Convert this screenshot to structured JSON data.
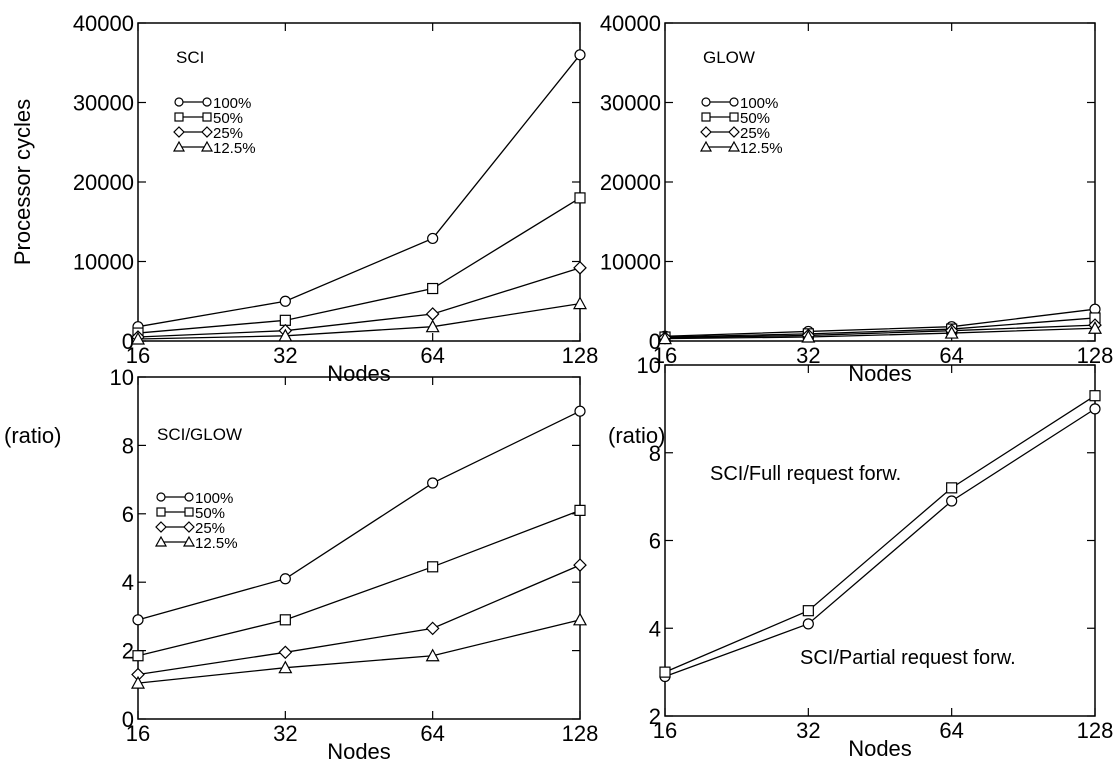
{
  "chart_data": [
    {
      "id": "sci",
      "type": "line",
      "title": "SCI",
      "xlabel": "Nodes",
      "ylabel": "Processor cycles",
      "ylim": [
        0,
        40000
      ],
      "x": [
        16,
        32,
        64,
        128
      ],
      "x_scale": "log2",
      "yticks": [
        "0",
        "10000",
        "20000",
        "30000",
        "40000"
      ],
      "ytick_values": [
        0,
        10000,
        20000,
        30000,
        40000
      ],
      "xticks": [
        "16",
        "32",
        "64",
        "128"
      ],
      "legend_position": "top-left",
      "series": [
        {
          "name": "100%",
          "marker": "circle",
          "values": [
            1800,
            5000,
            12900,
            36000
          ]
        },
        {
          "name": "50%",
          "marker": "square",
          "values": [
            1000,
            2600,
            6600,
            18000
          ]
        },
        {
          "name": "25%",
          "marker": "diamond",
          "values": [
            500,
            1300,
            3400,
            9200
          ]
        },
        {
          "name": "12.5%",
          "marker": "triangle",
          "values": [
            250,
            650,
            1800,
            4700
          ]
        }
      ]
    },
    {
      "id": "glow",
      "type": "line",
      "title": "GLOW",
      "xlabel": "Nodes",
      "ylabel": "",
      "ylim": [
        0,
        40000
      ],
      "x": [
        16,
        32,
        64,
        128
      ],
      "x_scale": "log2",
      "yticks": [
        "0",
        "10000",
        "20000",
        "30000",
        "40000"
      ],
      "ytick_values": [
        0,
        10000,
        20000,
        30000,
        40000
      ],
      "xticks": [
        "16",
        "32",
        "64",
        "128"
      ],
      "legend_position": "top-left",
      "series": [
        {
          "name": "100%",
          "marker": "circle",
          "values": [
            600,
            1200,
            1800,
            4000
          ]
        },
        {
          "name": "50%",
          "marker": "square",
          "values": [
            500,
            900,
            1500,
            2900
          ]
        },
        {
          "name": "25%",
          "marker": "diamond",
          "values": [
            400,
            700,
            1300,
            2000
          ]
        },
        {
          "name": "12.5%",
          "marker": "triangle",
          "values": [
            300,
            500,
            1000,
            1600
          ]
        }
      ]
    },
    {
      "id": "ratio",
      "type": "line",
      "title": "SCI/GLOW",
      "xlabel": "Nodes",
      "ylabel": "(ratio)",
      "ylim": [
        0,
        10
      ],
      "x": [
        16,
        32,
        64,
        128
      ],
      "x_scale": "log2",
      "yticks": [
        "0",
        "2",
        "4",
        "6",
        "8",
        "10"
      ],
      "ytick_values": [
        0,
        2,
        4,
        6,
        8,
        10
      ],
      "xticks": [
        "16",
        "32",
        "64",
        "128"
      ],
      "legend_position": "top-left",
      "series": [
        {
          "name": "100%",
          "marker": "circle",
          "values": [
            2.9,
            4.1,
            6.9,
            9.0
          ]
        },
        {
          "name": "50%",
          "marker": "square",
          "values": [
            1.85,
            2.9,
            4.45,
            6.1
          ]
        },
        {
          "name": "25%",
          "marker": "diamond",
          "values": [
            1.3,
            1.95,
            2.65,
            4.5
          ]
        },
        {
          "name": "12.5%",
          "marker": "triangle",
          "values": [
            1.05,
            1.5,
            1.85,
            2.9
          ]
        }
      ]
    },
    {
      "id": "forward",
      "type": "line",
      "title": "",
      "xlabel": "Nodes",
      "ylabel": "(ratio)",
      "ylim": [
        2,
        10
      ],
      "x": [
        16,
        32,
        64,
        128
      ],
      "x_scale": "log2",
      "yticks": [
        "2",
        "4",
        "6",
        "8",
        "10"
      ],
      "ytick_values": [
        2,
        4,
        6,
        8,
        10
      ],
      "xticks": [
        "16",
        "32",
        "64",
        "128"
      ],
      "annotations": [
        "SCI/Full request forw.",
        "SCI/Partial request forw."
      ],
      "series": [
        {
          "name": "SCI/Partial request forw.",
          "marker": "circle",
          "values": [
            2.9,
            4.1,
            6.9,
            9.0
          ]
        },
        {
          "name": "SCI/Full request forw.",
          "marker": "square",
          "values": [
            3.0,
            4.4,
            7.2,
            9.3
          ]
        }
      ]
    }
  ]
}
